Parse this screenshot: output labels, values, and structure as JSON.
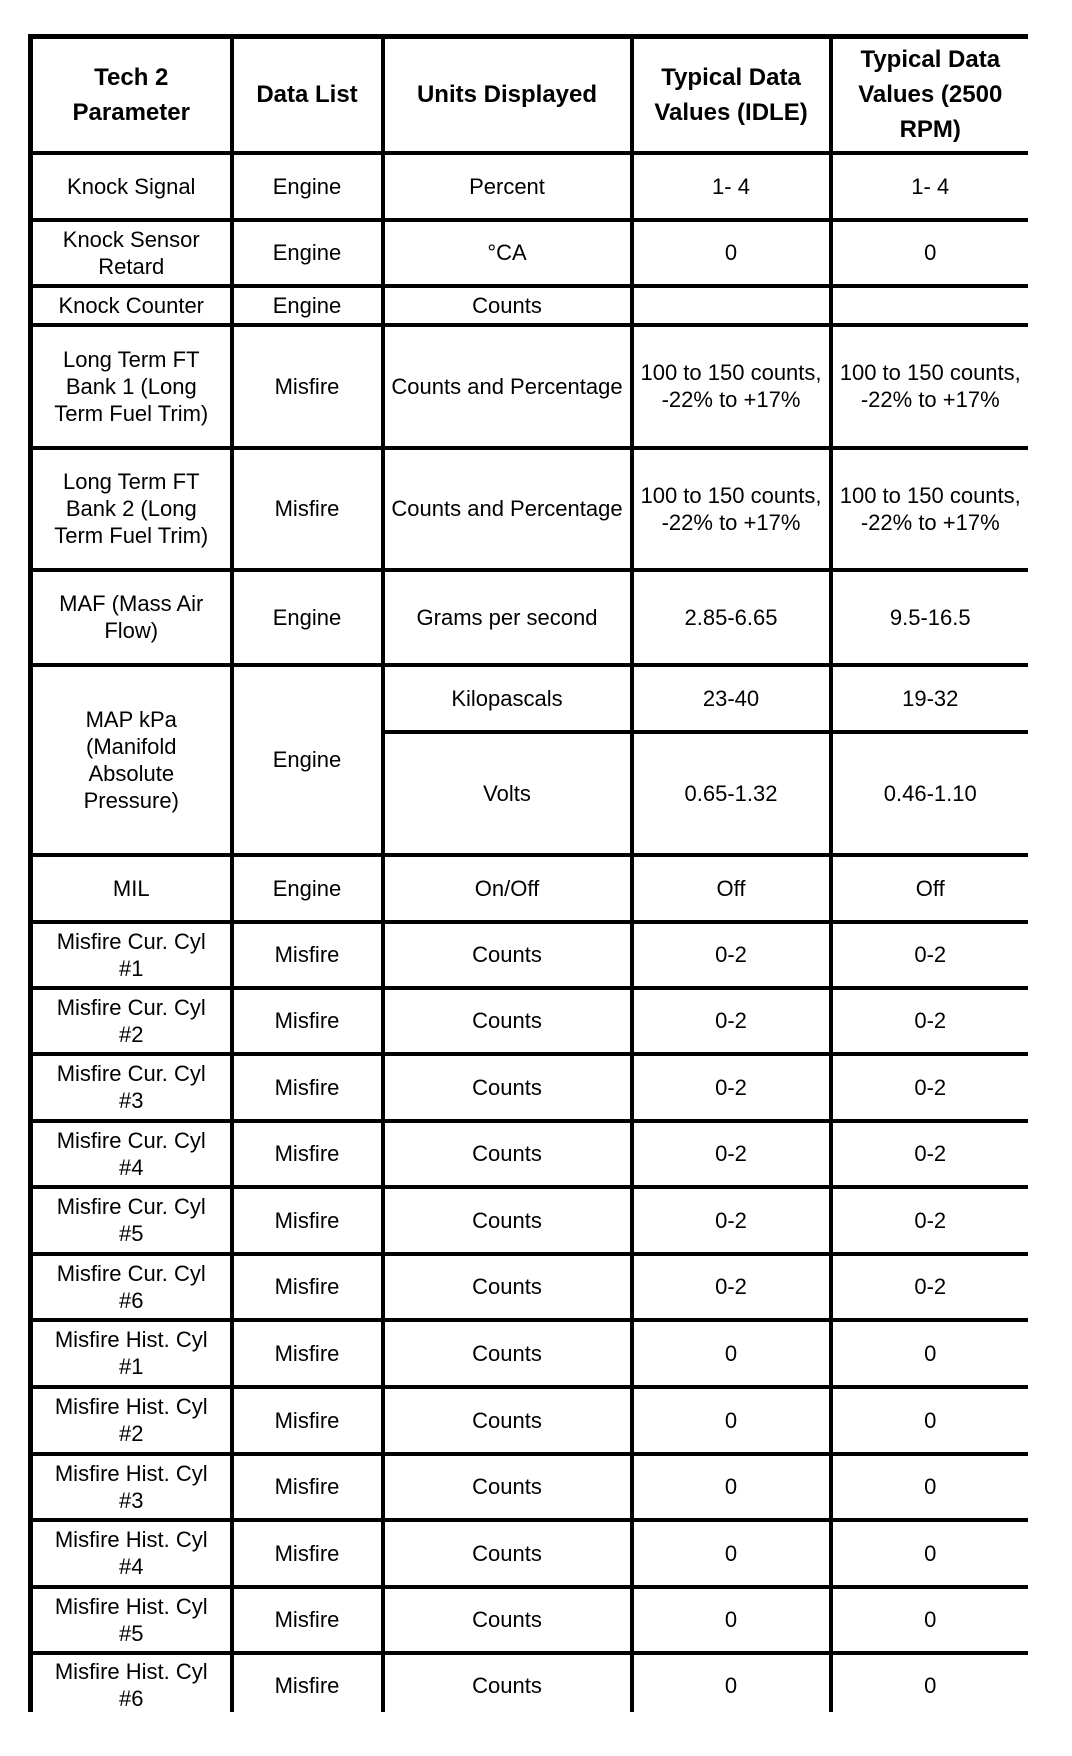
{
  "headers": [
    "Tech 2 Parameter",
    "Data List",
    "Units Displayed",
    "Typical Data Values (IDLE)",
    "Typical Data Values (2500 RPM)"
  ],
  "rows": [
    {
      "parameter": "Knock Signal",
      "data_list": "Engine",
      "units": "Percent",
      "idle": "1- 4",
      "rpm2500": "1- 4"
    },
    {
      "parameter": "Knock Sensor Retard",
      "data_list": "Engine",
      "units": "°CA",
      "idle": "0",
      "rpm2500": "0"
    },
    {
      "parameter": "Knock Counter",
      "data_list": "Engine",
      "units": "Counts",
      "idle": "___",
      "rpm2500": "___"
    },
    {
      "parameter": "Long Term FT Bank 1 (Long Term Fuel Trim)",
      "data_list": "Misfire",
      "units": "Counts and Percentage",
      "idle": "100 to 150 counts, -22% to +17%",
      "rpm2500": "100 to 150 counts, -22% to +17%"
    },
    {
      "parameter": "Long Term FT Bank 2 (Long Term Fuel Trim)",
      "data_list": "Misfire",
      "units": "Counts and Percentage",
      "idle": "100 to 150 counts, -22% to +17%",
      "rpm2500": "100 to 150 counts, -22% to +17%"
    },
    {
      "parameter": "MAF (Mass Air Flow)",
      "data_list": "Engine",
      "units": "Grams per second",
      "idle": "2.85-6.65",
      "rpm2500": "9.5-16.5"
    },
    {
      "parameter": "MAP kPa (Manifold Absolute Pressure)",
      "data_list": "Engine",
      "units": "Kilopascals",
      "idle": "23-40",
      "rpm2500": "19-32"
    },
    {
      "units": "Volts",
      "idle": "0.65-1.32",
      "rpm2500": "0.46-1.10"
    },
    {
      "parameter": "MIL",
      "data_list": "Engine",
      "units": "On/Off",
      "idle": "Off",
      "rpm2500": "Off"
    },
    {
      "parameter": "Misfire Cur. Cyl #1",
      "data_list": "Misfire",
      "units": "Counts",
      "idle": "0-2",
      "rpm2500": "0-2"
    },
    {
      "parameter": "Misfire Cur. Cyl #2",
      "data_list": "Misfire",
      "units": "Counts",
      "idle": "0-2",
      "rpm2500": "0-2"
    },
    {
      "parameter": "Misfire Cur. Cyl #3",
      "data_list": "Misfire",
      "units": "Counts",
      "idle": "0-2",
      "rpm2500": "0-2"
    },
    {
      "parameter": "Misfire Cur. Cyl #4",
      "data_list": "Misfire",
      "units": "Counts",
      "idle": "0-2",
      "rpm2500": "0-2"
    },
    {
      "parameter": "Misfire Cur. Cyl #5",
      "data_list": "Misfire",
      "units": "Counts",
      "idle": "0-2",
      "rpm2500": "0-2"
    },
    {
      "parameter": "Misfire Cur. Cyl #6",
      "data_list": "Misfire",
      "units": "Counts",
      "idle": "0-2",
      "rpm2500": "0-2"
    },
    {
      "parameter": "Misfire Hist. Cyl #1",
      "data_list": "Misfire",
      "units": "Counts",
      "idle": "0",
      "rpm2500": "0"
    },
    {
      "parameter": "Misfire Hist. Cyl #2",
      "data_list": "Misfire",
      "units": "Counts",
      "idle": "0",
      "rpm2500": "0"
    },
    {
      "parameter": "Misfire Hist. Cyl #3",
      "data_list": "Misfire",
      "units": "Counts",
      "idle": "0",
      "rpm2500": "0"
    },
    {
      "parameter": "Misfire Hist. Cyl #4",
      "data_list": "Misfire",
      "units": "Counts",
      "idle": "0",
      "rpm2500": "0"
    },
    {
      "parameter": "Misfire Hist. Cyl #5",
      "data_list": "Misfire",
      "units": "Counts",
      "idle": "0",
      "rpm2500": "0"
    },
    {
      "parameter": "Misfire Hist. Cyl #6",
      "data_list": "Misfire",
      "units": "Counts",
      "idle": "0",
      "rpm2500": "0"
    }
  ]
}
